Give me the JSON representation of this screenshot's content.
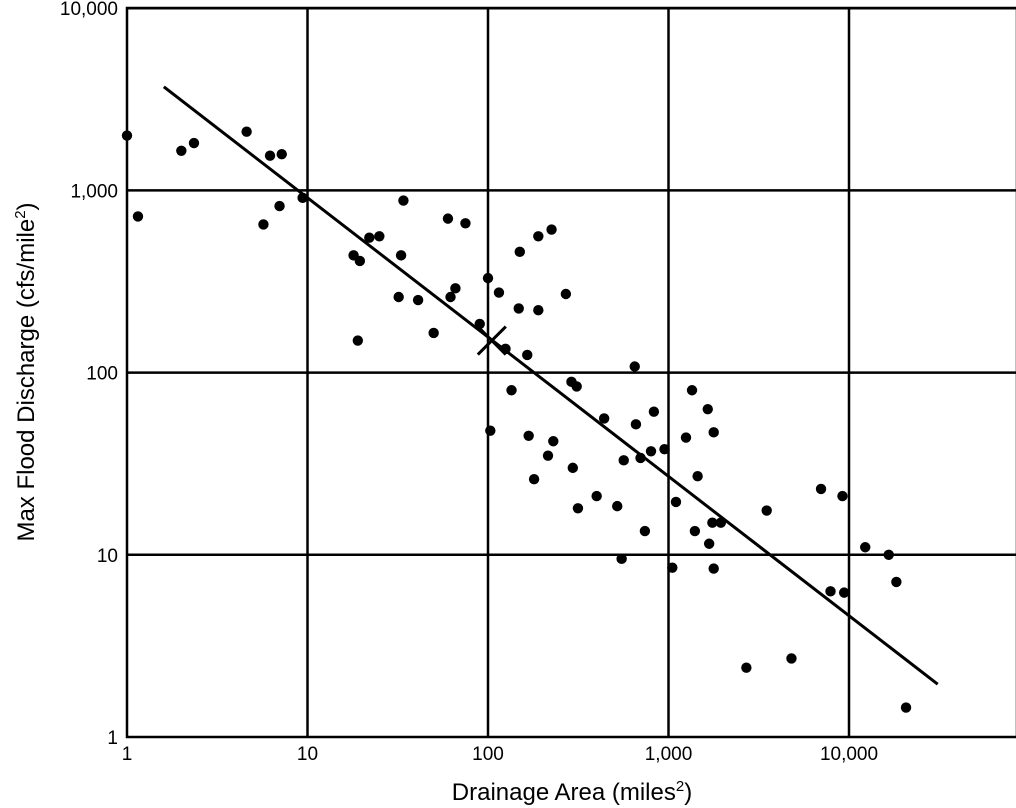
{
  "chart_data": {
    "type": "scatter",
    "xlabel": {
      "text": "Drainage Area (miles",
      "sup": "2",
      "close": ")"
    },
    "ylabel": {
      "text": "Max Flood Discharge (cfs/mile",
      "sup": "2",
      "close": ")"
    },
    "x_scale": "log",
    "y_scale": "log",
    "xlim": [
      1,
      100000
    ],
    "ylim": [
      1,
      10000
    ],
    "x_ticks": [
      {
        "value": 1,
        "label": "1"
      },
      {
        "value": 10,
        "label": "10"
      },
      {
        "value": 100,
        "label": "100"
      },
      {
        "value": 1000,
        "label": "1,000"
      },
      {
        "value": 10000,
        "label": "10,000"
      }
    ],
    "y_ticks": [
      {
        "value": 1,
        "label": "1"
      },
      {
        "value": 10,
        "label": "10"
      },
      {
        "value": 100,
        "label": "100"
      },
      {
        "value": 1000,
        "label": "1,000"
      },
      {
        "value": 10000,
        "label": "10,000"
      }
    ],
    "grid": true,
    "colors": {
      "points": "#000000",
      "line": "#000000",
      "grid": "#000000"
    },
    "points": [
      [
        1.0,
        2000
      ],
      [
        1.15,
        720
      ],
      [
        2.0,
        1650
      ],
      [
        2.35,
        1820
      ],
      [
        4.6,
        2100
      ],
      [
        5.7,
        650
      ],
      [
        6.2,
        1550
      ],
      [
        7.2,
        1580
      ],
      [
        7.0,
        820
      ],
      [
        9.4,
        910
      ],
      [
        18,
        440
      ],
      [
        19.5,
        410
      ],
      [
        19,
        150
      ],
      [
        22,
        550
      ],
      [
        25,
        560
      ],
      [
        32,
        260
      ],
      [
        33,
        440
      ],
      [
        34,
        880
      ],
      [
        41,
        250
      ],
      [
        50,
        165
      ],
      [
        60,
        700
      ],
      [
        62,
        260
      ],
      [
        66,
        290
      ],
      [
        75,
        660
      ],
      [
        90,
        185
      ],
      [
        100,
        330
      ],
      [
        103,
        48
      ],
      [
        115,
        275
      ],
      [
        125,
        135
      ],
      [
        135,
        80
      ],
      [
        148,
        225
      ],
      [
        150,
        460
      ],
      [
        165,
        125
      ],
      [
        168,
        45
      ],
      [
        180,
        26
      ],
      [
        190,
        560
      ],
      [
        190,
        220
      ],
      [
        215,
        35
      ],
      [
        225,
        610
      ],
      [
        230,
        42
      ],
      [
        270,
        270
      ],
      [
        290,
        89
      ],
      [
        295,
        30
      ],
      [
        310,
        84
      ],
      [
        315,
        18
      ],
      [
        400,
        21
      ],
      [
        440,
        56
      ],
      [
        520,
        18.5
      ],
      [
        550,
        9.5
      ],
      [
        565,
        33
      ],
      [
        650,
        108
      ],
      [
        660,
        52
      ],
      [
        700,
        34
      ],
      [
        740,
        13.5
      ],
      [
        800,
        37
      ],
      [
        830,
        61
      ],
      [
        950,
        38
      ],
      [
        1050,
        8.5
      ],
      [
        1100,
        19.5
      ],
      [
        1250,
        44
      ],
      [
        1350,
        80
      ],
      [
        1400,
        13.5
      ],
      [
        1450,
        27
      ],
      [
        1650,
        63
      ],
      [
        1680,
        11.5
      ],
      [
        1750,
        15
      ],
      [
        1780,
        8.4
      ],
      [
        1780,
        47
      ],
      [
        1950,
        15
      ],
      [
        2700,
        2.4
      ],
      [
        3500,
        17.5
      ],
      [
        4800,
        2.7
      ],
      [
        7000,
        23
      ],
      [
        7900,
        6.3
      ],
      [
        9200,
        21
      ],
      [
        9400,
        6.2
      ],
      [
        12300,
        11
      ],
      [
        16600,
        10
      ],
      [
        18300,
        7.1
      ],
      [
        20700,
        1.45
      ]
    ],
    "trend_line": {
      "x": [
        1.6,
        31000
      ],
      "y": [
        3700,
        1.95
      ]
    },
    "marker_x": {
      "x": 105,
      "y": 150
    }
  }
}
